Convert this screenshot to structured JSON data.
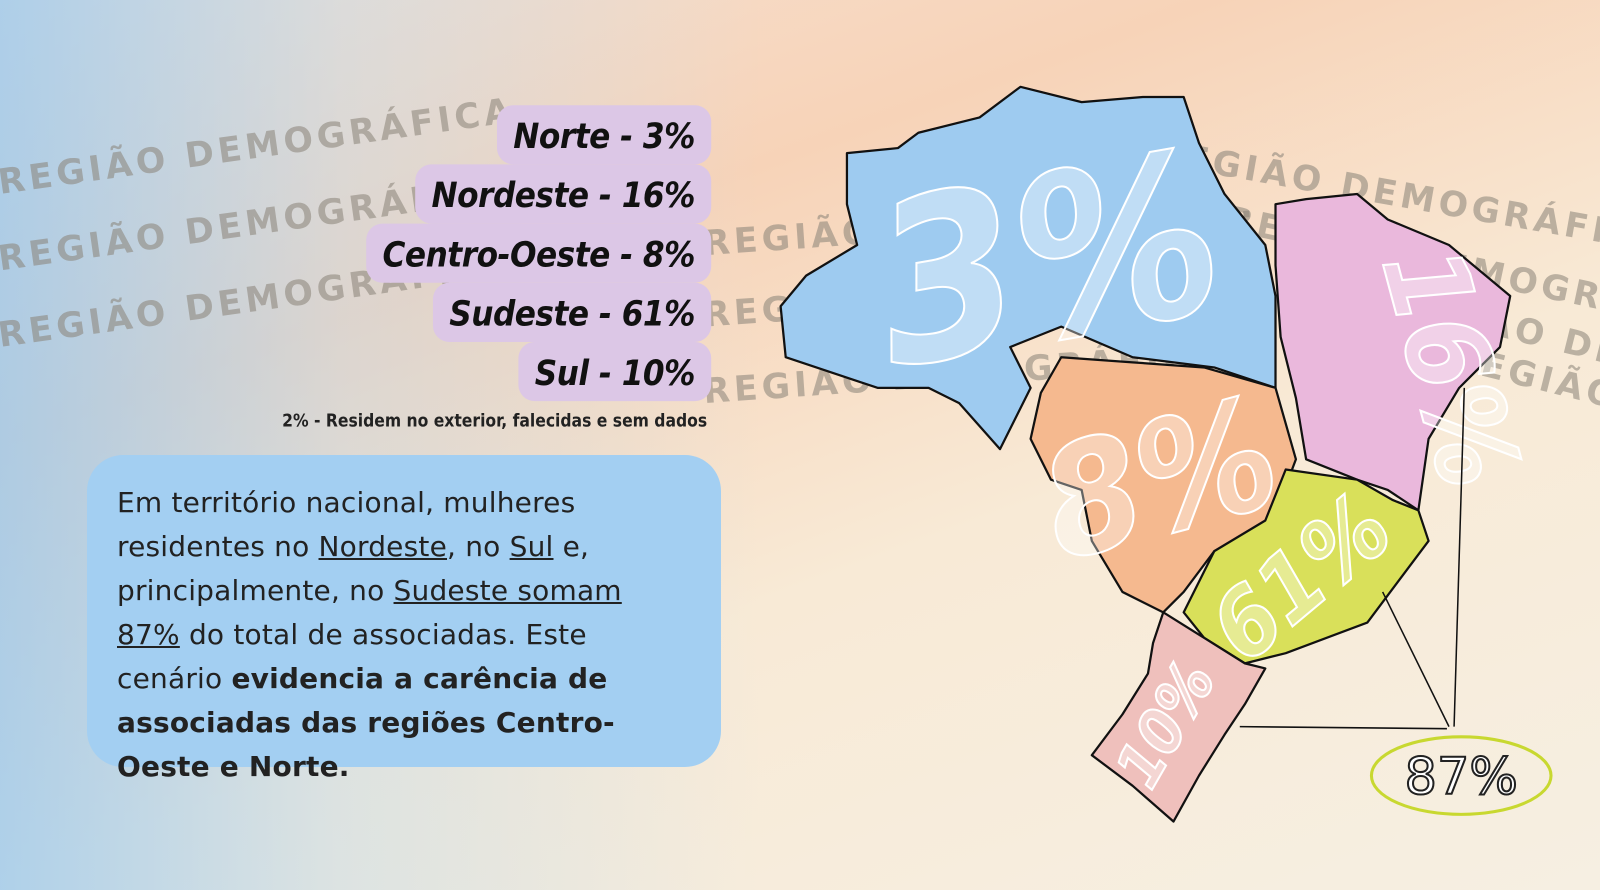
{
  "watermark": "REGIÃO DEMOGRÁFICA .",
  "regions": [
    {
      "label": "Norte - 3%",
      "map_label": "3%"
    },
    {
      "label": "Nordeste - 16%",
      "map_label": "16%"
    },
    {
      "label": "Centro-Oeste - 8%",
      "map_label": "8%"
    },
    {
      "label": "Sudeste - 61%",
      "map_label": "61%"
    },
    {
      "label": "Sul - 10%",
      "map_label": "10%"
    }
  ],
  "footnote": "2% - Residem no exterior, falecidas e sem dados",
  "paragraph": [
    {
      "text": "Em território nacional, mulheres residentes no "
    },
    {
      "text": "Nordeste",
      "underline": true
    },
    {
      "text": ", no "
    },
    {
      "text": "Sul",
      "underline": true
    },
    {
      "text": " e, principalmente, no "
    },
    {
      "text": "Sudeste somam 87%",
      "underline": true
    },
    {
      "text": " do total de associadas. Este cenário "
    },
    {
      "text": "evidencia a carência de associadas das regiões Centro-Oeste e Norte.",
      "bold": true
    }
  ],
  "total_label": "87%"
}
